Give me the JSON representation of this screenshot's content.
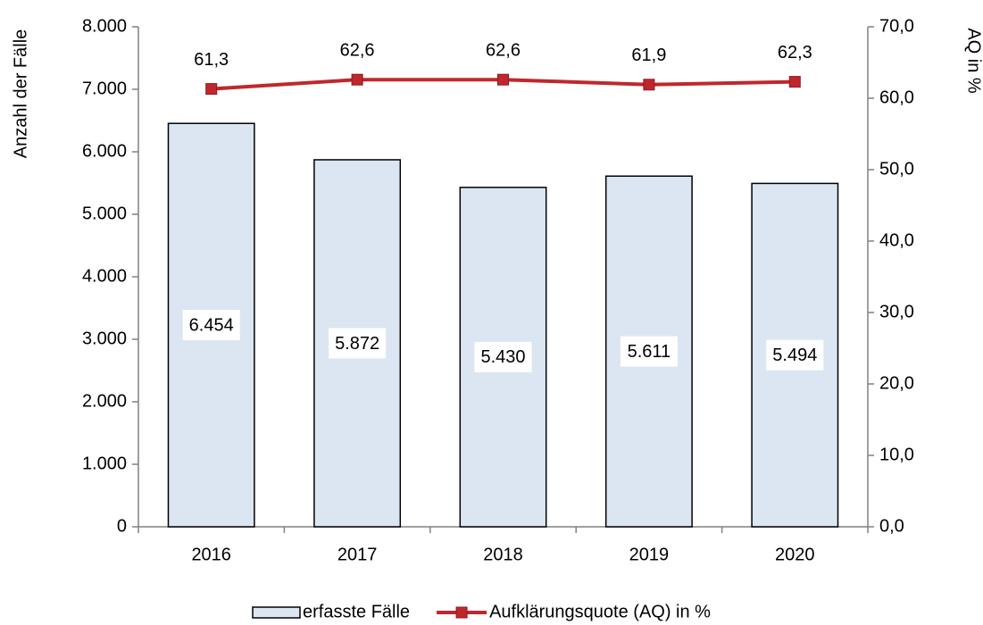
{
  "chart_data": {
    "type": "bar_line",
    "categories": [
      "2016",
      "2017",
      "2018",
      "2019",
      "2020"
    ],
    "series": [
      {
        "name": "erfasste Fälle",
        "type": "bar",
        "color": "#dce6f2",
        "values": [
          6454,
          5872,
          5430,
          5611,
          5494
        ],
        "value_labels": [
          "6.454",
          "5.872",
          "5.430",
          "5.611",
          "5.494"
        ]
      },
      {
        "name": "Aufklärungsquote (AQ) in %",
        "type": "line",
        "axis": "y2",
        "color": "#c0272d",
        "values": [
          61.3,
          62.6,
          62.6,
          61.9,
          62.3
        ],
        "value_labels": [
          "61,3",
          "62,6",
          "62,6",
          "61,9",
          "62,3"
        ]
      }
    ],
    "ylabel": "Anzahl der Fälle",
    "y2label": "AQ in %",
    "ylim": [
      0,
      8000
    ],
    "yticks": [
      0,
      {
        "value": 1000,
        "label": "1.000"
      },
      {
        "value": 2000,
        "label": "2.000"
      },
      {
        "value": 3000,
        "label": "3.000"
      },
      {
        "value": 4000,
        "label": "4.000"
      },
      {
        "value": 5000,
        "label": "5.000"
      },
      {
        "value": 6000,
        "label": "6.000"
      },
      {
        "value": 7000,
        "label": "7.000"
      },
      {
        "value": 8000,
        "label": "8.000"
      }
    ],
    "y2lim": [
      0,
      70
    ],
    "y2ticks": [
      {
        "value": 0,
        "label": "0,0"
      },
      {
        "value": 10,
        "label": "10,0"
      },
      {
        "value": 20,
        "label": "20,0"
      },
      {
        "value": 30,
        "label": "30,0"
      },
      {
        "value": 40,
        "label": "40,0"
      },
      {
        "value": 50,
        "label": "50,0"
      },
      {
        "value": 60,
        "label": "60,0"
      },
      {
        "value": 70,
        "label": "70,0"
      }
    ],
    "grid": false,
    "legend": "bottom"
  }
}
